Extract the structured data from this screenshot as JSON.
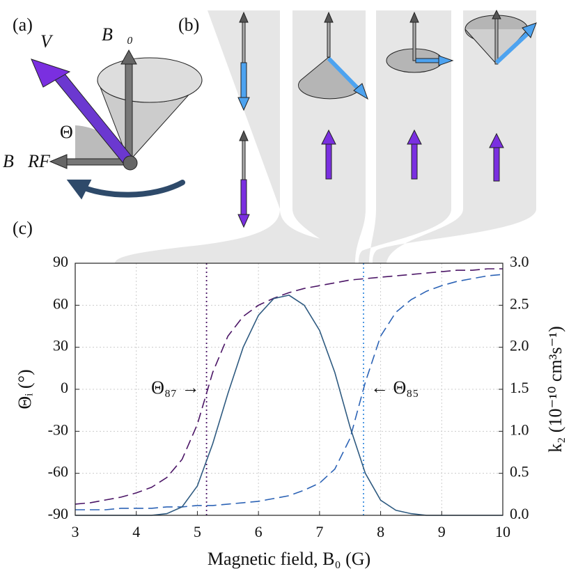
{
  "panel_labels": [
    "(a)",
    "(b)",
    "(c)"
  ],
  "diagram_labels": {
    "velocity": "V⃗",
    "static_field": "B⃗₀",
    "angle": "Θ",
    "rf_field": "B⃗RF"
  },
  "chart_data": {
    "type": "line",
    "xlabel": "Magnetic field, B₀ (G)",
    "ylabel": "Θᵢ (°)",
    "y2label": "k₂ (10⁻¹⁰ cm³s⁻¹)",
    "x": [
      3.0,
      3.25,
      3.5,
      3.75,
      4.0,
      4.25,
      4.5,
      4.75,
      5.0,
      5.25,
      5.5,
      5.75,
      6.0,
      6.25,
      6.5,
      6.75,
      7.0,
      7.25,
      7.5,
      7.75,
      8.0,
      8.25,
      8.5,
      8.75,
      9.0,
      9.25,
      9.5,
      9.75,
      10.0
    ],
    "series": [
      {
        "name": "Θ₈₇",
        "color": "#4b1566",
        "dashed": true,
        "values": [
          -82,
          -81,
          -79,
          -77,
          -74,
          -70,
          -63,
          -50,
          -25,
          12,
          38,
          52,
          60,
          65,
          69,
          72,
          74,
          76,
          78,
          79,
          80,
          81,
          82,
          83,
          84,
          85,
          85,
          86,
          86
        ]
      },
      {
        "name": "Θ₈₅",
        "color": "#2b62b5",
        "dashed": true,
        "values": [
          -86,
          -86,
          -86,
          -85,
          -85,
          -85,
          -84,
          -84,
          -83,
          -83,
          -82,
          -81,
          -80,
          -78,
          -76,
          -72,
          -67,
          -57,
          -35,
          5,
          38,
          55,
          64,
          70,
          74,
          77,
          79,
          81,
          82
        ]
      },
      {
        "name": "k₂",
        "color": "#2e5a80",
        "dashed": false,
        "axis": "y2",
        "values": [
          0,
          0,
          0,
          0,
          0,
          0,
          0.02,
          0.1,
          0.35,
          0.85,
          1.45,
          2.0,
          2.38,
          2.58,
          2.62,
          2.5,
          2.2,
          1.7,
          1.05,
          0.5,
          0.18,
          0.06,
          0.02,
          0,
          0,
          0,
          0,
          0,
          0
        ]
      }
    ],
    "vlines": [
      {
        "x": 5.15,
        "color": "#4b1566"
      },
      {
        "x": 7.72,
        "color": "#3a8ee0"
      }
    ],
    "annotations": [
      {
        "text": "Θ₈₇ →",
        "color": "#4b1566"
      },
      {
        "text": "← Θ₈₅",
        "color": "#2b62b5"
      }
    ],
    "xlim": [
      3,
      10
    ],
    "xticks": [
      3,
      4,
      5,
      6,
      7,
      8,
      9,
      10
    ],
    "ylim": [
      -90,
      90
    ],
    "yticks": [
      -90,
      -60,
      -30,
      0,
      30,
      60,
      90
    ],
    "y2lim": [
      0,
      3
    ],
    "y2ticks": [
      {
        "value": 0,
        "label": "0.0"
      },
      0.5,
      {
        "value": 1,
        "label": "1.0"
      },
      1.5,
      {
        "value": 2,
        "label": "2.0"
      },
      2.5,
      {
        "value": 3,
        "label": "3.0"
      }
    ],
    "grid": true
  }
}
